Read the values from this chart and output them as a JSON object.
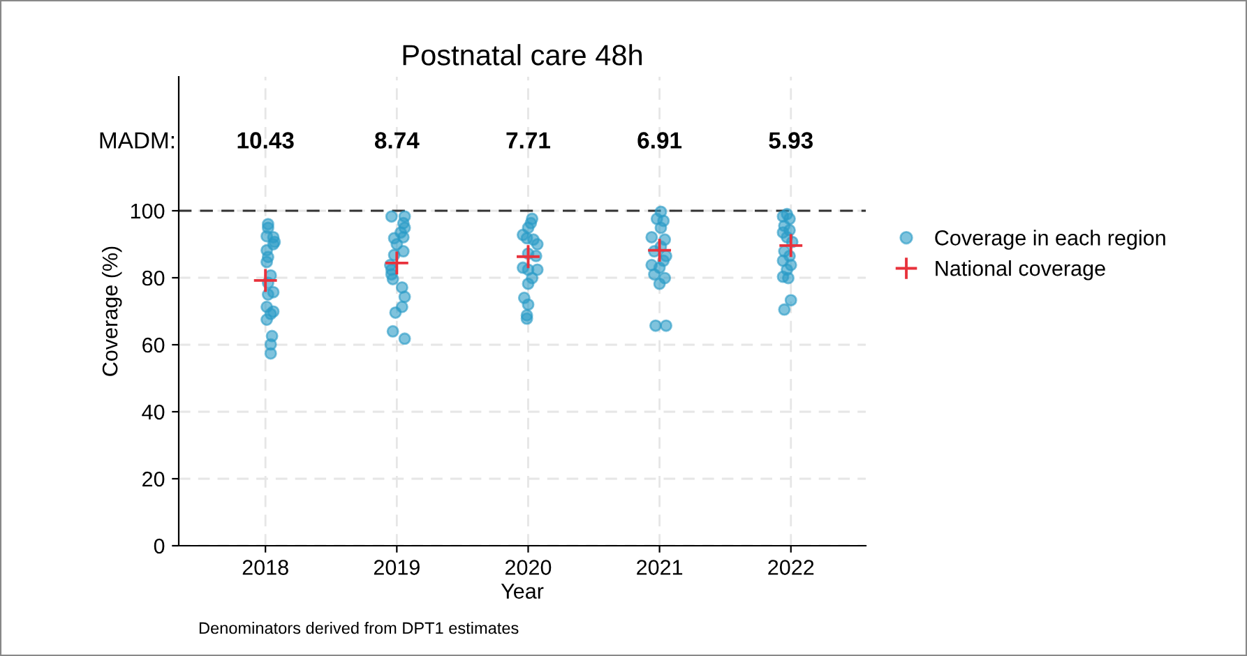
{
  "chart_data": {
    "type": "scatter",
    "title": "Postnatal care 48h",
    "xlabel": "Year",
    "ylabel": "Coverage (%)",
    "xlim": [
      2017.34,
      2022.57
    ],
    "xticks": [
      2018,
      2019,
      2020,
      2021,
      2022
    ],
    "ylim": [
      0,
      140
    ],
    "yticks": [
      0,
      20,
      40,
      60,
      80,
      100
    ],
    "grid": true,
    "legend": "right",
    "series": [
      {
        "name": "Coverage in each region",
        "marker": "circle",
        "color": "#2a9bc7",
        "x": [
          2018.02,
          2018.02,
          2018.01,
          2018.06,
          2018.07,
          2018.06,
          2018.01,
          2018.02,
          2018.01,
          2018.04,
          2018.02,
          2018.06,
          2018.02,
          2018.01,
          2018.06,
          2018.04,
          2018.01,
          2018.05,
          2018.04,
          2018.04,
          2018.96,
          2019.06,
          2019.05,
          2019.06,
          2019.03,
          2019.05,
          2018.98,
          2019.0,
          2018.98,
          2019.05,
          2018.95,
          2018.96,
          2018.96,
          2018.97,
          2019.04,
          2019.06,
          2019.04,
          2018.99,
          2018.97,
          2019.06,
          2020.03,
          2020.02,
          2020.0,
          2019.96,
          2019.99,
          2020.04,
          2020.07,
          2020.0,
          2020.06,
          2019.96,
          2020.0,
          2020.07,
          2020.03,
          2020.0,
          2019.97,
          2020.0,
          2019.99,
          2019.99,
          2021.01,
          2020.98,
          2021.03,
          2021.01,
          2020.94,
          2021.04,
          2021.01,
          2020.96,
          2021.05,
          2020.94,
          2021.03,
          2021.0,
          2020.96,
          2021.04,
          2021.0,
          2020.97,
          2021.05,
          2021.97,
          2021.94,
          2021.99,
          2021.95,
          2021.99,
          2021.94,
          2021.97,
          2022.01,
          2021.95,
          2021.99,
          2021.94,
          2022.0,
          2021.97,
          2021.94,
          2021.98,
          2022.0,
          2021.95
        ],
        "values": [
          96.0,
          94.9,
          92.4,
          92.1,
          90.7,
          90.0,
          88.2,
          86.2,
          84.7,
          80.7,
          78.5,
          75.7,
          75.0,
          71.3,
          69.9,
          69.2,
          67.5,
          62.6,
          60.1,
          57.4,
          98.3,
          98.3,
          96.3,
          94.9,
          93.5,
          92.1,
          91.8,
          90.0,
          86.8,
          87.9,
          83.8,
          82.4,
          81.0,
          79.6,
          77.1,
          74.3,
          71.3,
          69.6,
          64.0,
          61.8,
          97.6,
          96.3,
          94.9,
          92.8,
          91.8,
          91.4,
          90.0,
          87.2,
          86.5,
          83.0,
          82.4,
          82.4,
          79.9,
          78.2,
          74.0,
          72.0,
          68.8,
          67.8,
          99.7,
          97.6,
          97.0,
          94.9,
          92.1,
          91.4,
          89.3,
          87.9,
          86.5,
          83.8,
          85.1,
          83.0,
          81.0,
          79.9,
          78.2,
          65.7,
          65.7,
          99.0,
          98.3,
          97.6,
          95.5,
          94.2,
          93.5,
          92.1,
          90.7,
          87.9,
          86.5,
          85.1,
          83.8,
          82.4,
          80.3,
          79.9,
          73.3,
          70.5
        ]
      },
      {
        "name": "National coverage",
        "marker": "cross",
        "color": "#e8323c",
        "x": [
          2018,
          2019,
          2020,
          2021,
          2022
        ],
        "values": [
          79.2,
          84.4,
          86.3,
          88.2,
          89.6
        ]
      }
    ],
    "ref_lines": [
      {
        "axis": "y",
        "value": 100,
        "color": "#333333",
        "line_style": "dashed"
      }
    ],
    "annotations": [
      "MADM:",
      "10.43",
      "8.74",
      "7.71",
      "6.91",
      "5.93",
      "Denominators derived from DPT1 estimates"
    ]
  }
}
